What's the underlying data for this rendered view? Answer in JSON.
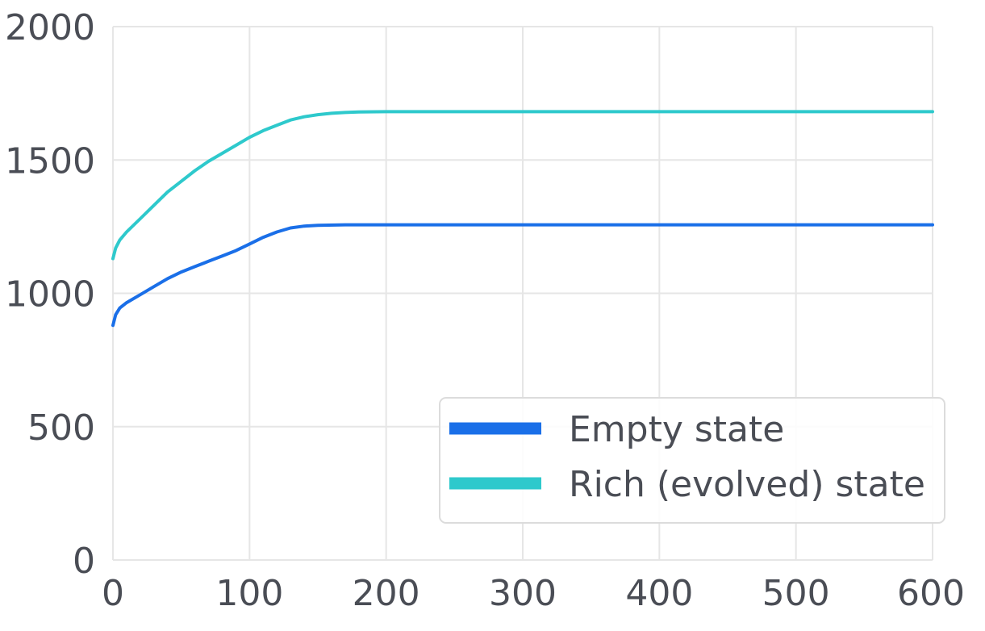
{
  "chart_data": {
    "type": "line",
    "title": "",
    "xlabel": "",
    "ylabel": "",
    "xlim": [
      0,
      600
    ],
    "ylim": [
      0,
      2000
    ],
    "x_ticks": [
      "0",
      "100",
      "200",
      "300",
      "400",
      "500",
      "600"
    ],
    "y_ticks": [
      "0",
      "500",
      "1000",
      "1500",
      "2000"
    ],
    "grid": true,
    "legend_position": "bottom-right",
    "series": [
      {
        "name": "Empty state",
        "color": "#1a6fe8",
        "x": [
          0,
          2,
          5,
          10,
          20,
          30,
          40,
          50,
          60,
          70,
          80,
          90,
          100,
          110,
          120,
          130,
          140,
          150,
          170,
          200,
          300,
          400,
          500,
          600
        ],
        "y": [
          880,
          920,
          945,
          965,
          995,
          1025,
          1055,
          1080,
          1100,
          1120,
          1140,
          1160,
          1185,
          1210,
          1230,
          1245,
          1252,
          1255,
          1257,
          1257,
          1257,
          1257,
          1257,
          1257
        ]
      },
      {
        "name": "Rich (evolved) state",
        "color": "#2ec9cc",
        "x": [
          0,
          2,
          5,
          10,
          20,
          30,
          40,
          50,
          60,
          70,
          80,
          90,
          100,
          110,
          120,
          130,
          140,
          150,
          160,
          170,
          180,
          200,
          300,
          400,
          500,
          600
        ],
        "y": [
          1130,
          1170,
          1200,
          1230,
          1280,
          1330,
          1380,
          1420,
          1460,
          1495,
          1525,
          1555,
          1585,
          1610,
          1630,
          1650,
          1662,
          1670,
          1675,
          1678,
          1680,
          1681,
          1681,
          1681,
          1681,
          1681
        ]
      }
    ]
  }
}
